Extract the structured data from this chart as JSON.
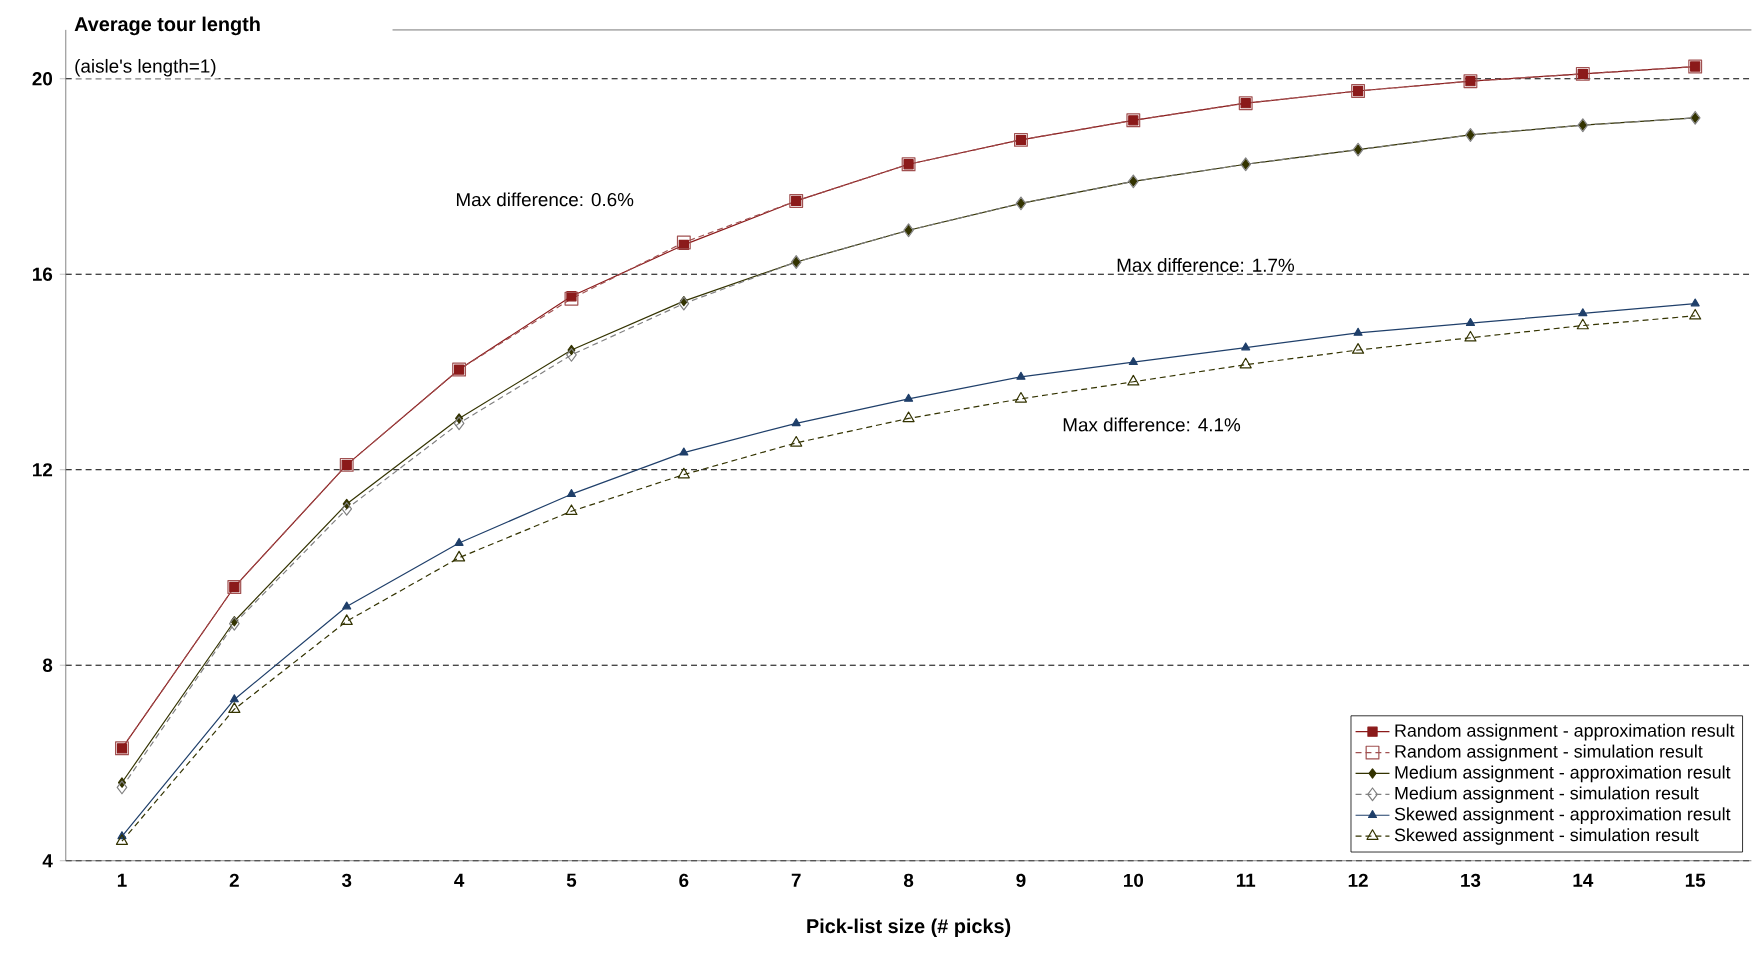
{
  "chart_data": {
    "type": "line",
    "title": "Average tour length",
    "subtitle": "(aisle's length=1)",
    "xlabel": "Pick-list size (# picks)",
    "categories": [
      "1",
      "2",
      "3",
      "4",
      "5",
      "6",
      "7",
      "8",
      "9",
      "10",
      "11",
      "12",
      "13",
      "14",
      "15"
    ],
    "series": [
      {
        "name": "Random assignment - approximation result",
        "color": "#8b1a1a",
        "marker": "square",
        "line_style": "solid",
        "values": [
          6.3,
          9.6,
          12.1,
          14.05,
          15.55,
          16.6,
          17.5,
          18.25,
          18.75,
          19.15,
          19.5,
          19.75,
          19.95,
          20.1,
          20.25
        ]
      },
      {
        "name": "Random assignment - simulation result",
        "color": "#a05050",
        "marker": "square",
        "line_style": "dashed",
        "values": [
          6.3,
          9.6,
          12.1,
          14.05,
          15.5,
          16.65,
          17.5,
          18.25,
          18.75,
          19.15,
          19.5,
          19.75,
          19.95,
          20.1,
          20.25
        ]
      },
      {
        "name": "Medium assignment - approximation result",
        "color": "#333300",
        "marker": "diamond",
        "line_style": "solid",
        "values": [
          5.6,
          8.9,
          11.3,
          13.05,
          14.45,
          15.45,
          16.25,
          16.9,
          17.45,
          17.9,
          18.25,
          18.55,
          18.85,
          19.05,
          19.2
        ]
      },
      {
        "name": "Medium assignment - simulation result",
        "color": "#808080",
        "marker": "diamond",
        "line_style": "dashed",
        "values": [
          5.5,
          8.85,
          11.2,
          12.95,
          14.35,
          15.4,
          16.25,
          16.9,
          17.45,
          17.9,
          18.25,
          18.55,
          18.85,
          19.05,
          19.2
        ]
      },
      {
        "name": "Skewed assignment - approximation result",
        "color": "#1f3f6a",
        "marker": "triangle",
        "line_style": "solid",
        "values": [
          4.5,
          7.3,
          9.2,
          10.5,
          11.5,
          12.35,
          12.95,
          13.45,
          13.9,
          14.2,
          14.5,
          14.8,
          15.0,
          15.2,
          15.4
        ]
      },
      {
        "name": "Skewed assignment - simulation result",
        "color": "#333300",
        "marker": "triangle",
        "line_style": "dashed",
        "values": [
          4.4,
          7.1,
          8.9,
          10.2,
          11.15,
          11.9,
          12.55,
          13.05,
          13.45,
          13.8,
          14.15,
          14.45,
          14.7,
          14.95,
          15.15
        ]
      }
    ],
    "annotations": [
      "Max difference: 0.6%",
      "Max difference: 1.7%",
      "Max difference: 4.1%"
    ],
    "ylim": [
      4,
      21
    ],
    "yticks": [
      4,
      8,
      12,
      16,
      20
    ],
    "grid": "y",
    "legend": "bottom right"
  }
}
